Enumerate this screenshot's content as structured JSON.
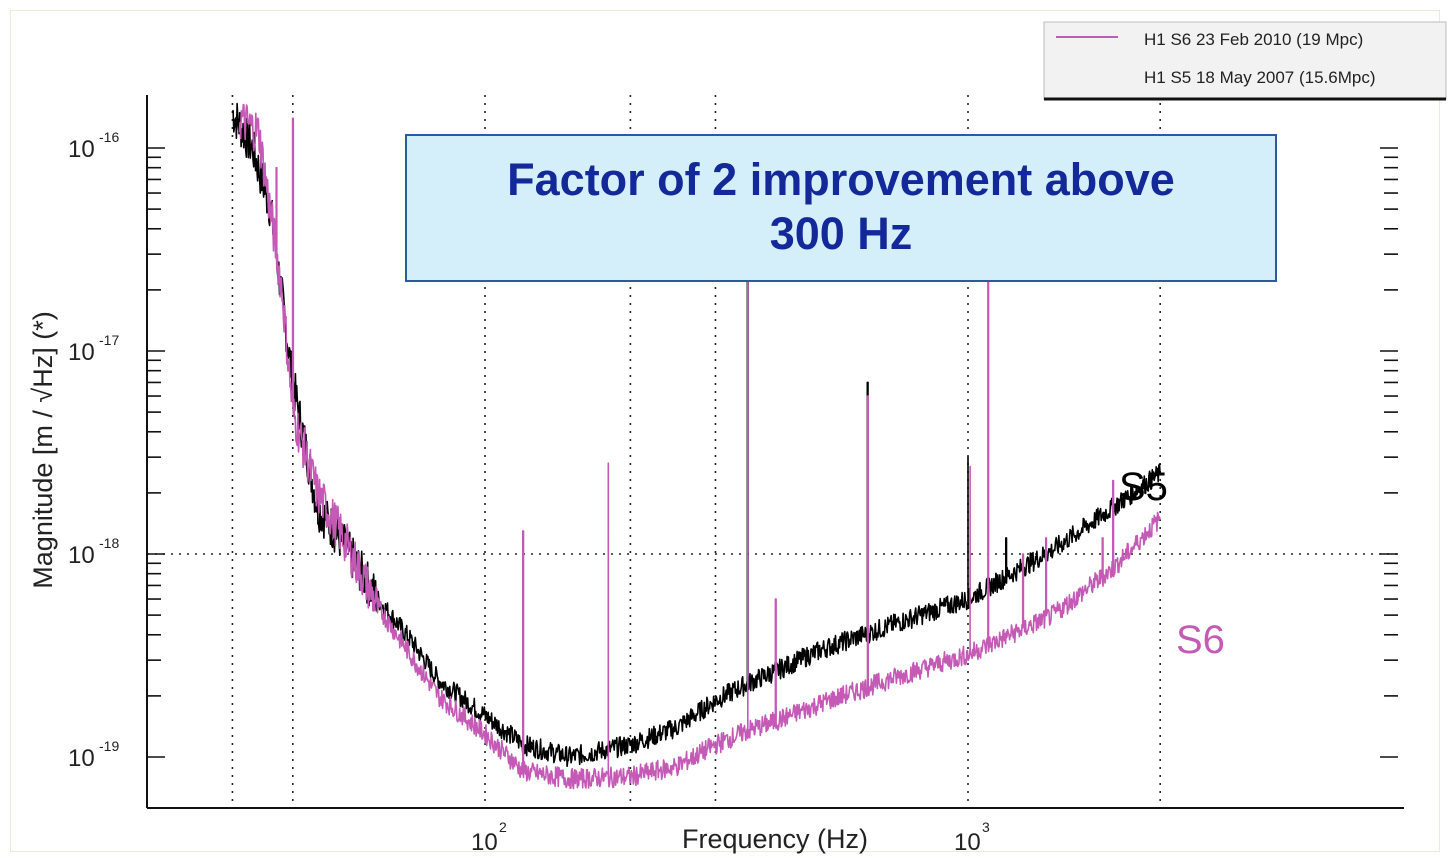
{
  "chart_data": {
    "type": "line",
    "xlabel": "Frequency (Hz)",
    "ylabel": "Magnitude [m / √Hz] (*)",
    "xscale": "log",
    "yscale": "log",
    "xlim": [
      20,
      3000
    ],
    "ylim": [
      5e-20,
      2e-16
    ],
    "x_ticks": [
      {
        "base": "10",
        "exp": "2"
      },
      {
        "base": "10",
        "exp": "3"
      }
    ],
    "y_ticks": [
      {
        "base": "10",
        "exp": "-16"
      },
      {
        "base": "10",
        "exp": "-17"
      },
      {
        "base": "10",
        "exp": "-18"
      },
      {
        "base": "10",
        "exp": "-19"
      }
    ],
    "grid": "dotted at decades and minor frequencies",
    "legend": {
      "placement": "top-right",
      "entries": [
        "H1 S6 23 Feb 2010 (19 Mpc)",
        "H1 S5 18 May 2007 (15.6Mpc)"
      ]
    },
    "series": [
      {
        "name": "H1 S5 18 May 2007 (15.6Mpc)",
        "label": "S5",
        "color": "#000000",
        "x": [
          30,
          33,
          36,
          40,
          45,
          50,
          60,
          70,
          80,
          100,
          120,
          150,
          200,
          250,
          300,
          350,
          400,
          500,
          700,
          1000,
          1500,
          2000,
          2500
        ],
        "y": [
          1.5e-16,
          1e-16,
          5e-17,
          7e-18,
          1.7e-18,
          1.2e-18,
          6e-19,
          3.8e-19,
          2.4e-19,
          1.6e-19,
          1.15e-19,
          1e-19,
          1.15e-19,
          1.4e-19,
          1.9e-19,
          2.3e-19,
          2.65e-19,
          3.4e-19,
          4.5e-19,
          6e-19,
          1.05e-18,
          1.7e-18,
          2.5e-18
        ]
      },
      {
        "name": "H1 S6 23 Feb 2010 (19 Mpc)",
        "label": "S6",
        "color": "#c45ab6",
        "x": [
          31,
          34,
          38,
          40,
          45,
          50,
          60,
          70,
          80,
          100,
          120,
          150,
          200,
          250,
          300,
          350,
          400,
          500,
          700,
          1000,
          1500,
          2000,
          2500
        ],
        "y": [
          1.4e-16,
          1.2e-16,
          2e-17,
          5e-18,
          2e-18,
          1.3e-18,
          5.5e-19,
          3.2e-19,
          2e-19,
          1.3e-19,
          8.5e-20,
          7.8e-20,
          8e-20,
          9e-20,
          1.15e-19,
          1.35e-19,
          1.5e-19,
          1.85e-19,
          2.45e-19,
          3.2e-19,
          5e-19,
          8.5e-19,
          1.5e-18
        ]
      }
    ],
    "annotations": [
      {
        "text": "Factor of 2 improvement above 300 Hz"
      },
      {
        "text": "S5"
      },
      {
        "text": "S6"
      }
    ]
  },
  "callout": {
    "line1": "Factor of 2 improvement above",
    "line2": "300 Hz"
  }
}
